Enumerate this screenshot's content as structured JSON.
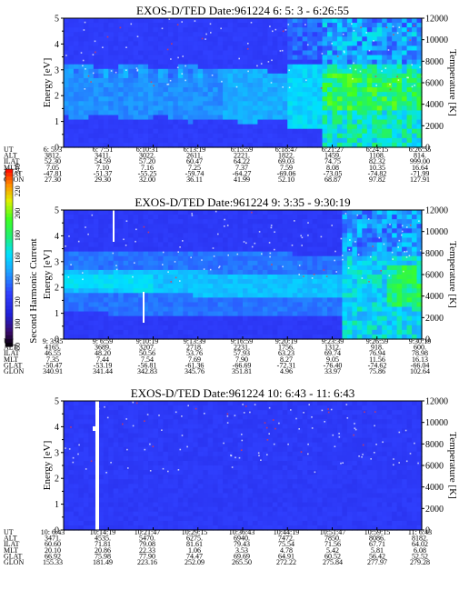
{
  "chart_data": [
    {
      "type": "heatmap",
      "title": "EXOS-D/TED   Date:961224  6: 5: 3 - 6:26:55",
      "ylabel": "Energy [eV]",
      "y2label": "Temperature [K]",
      "ylim": [
        0,
        5
      ],
      "y2lim": [
        0,
        12000
      ],
      "yticks": [
        "0",
        "1",
        "2",
        "3",
        "4",
        "5"
      ],
      "y2ticks": [
        "0",
        "2000",
        "4000",
        "6000",
        "8000",
        "10000",
        "12000"
      ],
      "time_labels": [
        "6: 5: 3",
        "6: 7:51",
        "6:10:31",
        "6:13:19",
        "6:15:59",
        "6:18:47",
        "6:21:27",
        "6:24:15",
        "6:26:55"
      ],
      "table": [
        {
          "label": "UT",
          "values": [
            "6: 5: 3",
            "6: 7:51",
            "6:10:31",
            "6:13:19",
            "6:15:59",
            "6:18:47",
            "6:21:27",
            "6:24:15",
            "6:26:55"
          ]
        },
        {
          "label": "ALT",
          "values": [
            "3812.",
            "3411.",
            "3022.",
            "2611.",
            "2221.",
            "1822.",
            "1459.",
            "1108.",
            "814."
          ]
        },
        {
          "label": "ILAT",
          "values": [
            "52.30",
            "54.59",
            "57.20",
            "60.47",
            "64.22",
            "69.03",
            "74.75",
            "82.32",
            "999.00"
          ]
        },
        {
          "label": "MLT",
          "values": [
            "7.05",
            "7.10",
            "7.16",
            "7.25",
            "7.37",
            "7.59",
            "8.08",
            "10.35",
            "16.64"
          ]
        },
        {
          "label": "GLAT",
          "values": [
            "-47.81",
            "-51.37",
            "-55.25",
            "-59.74",
            "-64.27",
            "-69.06",
            "-73.05",
            "-74.82",
            "-71.99"
          ]
        },
        {
          "label": "GLON",
          "values": [
            "27.30",
            "29.30",
            "32.00",
            "36.11",
            "41.99",
            "52.10",
            "68.87",
            "97.82",
            "127.91"
          ]
        }
      ]
    },
    {
      "type": "heatmap",
      "title": "EXOS-D/TED   Date:961224  9: 3:35 - 9:30:19",
      "ylabel": "Energy [eV]",
      "y2label": "Temperature [K]",
      "ylim": [
        0,
        5
      ],
      "y2lim": [
        0,
        12000
      ],
      "yticks": [
        "0",
        "1",
        "2",
        "3",
        "4",
        "5"
      ],
      "y2ticks": [
        "0",
        "2000",
        "4000",
        "6000",
        "8000",
        "10000",
        "12000"
      ],
      "time_labels": [
        "9: 3:35",
        "9: 6:59",
        "9:10:19",
        "9:13:39",
        "9:16:59",
        "9:20:19",
        "9:23:39",
        "9:26:59",
        "9:30:19"
      ],
      "table": [
        {
          "label": "UT",
          "values": [
            "9: 3:35",
            "9: 6:59",
            "9:10:19",
            "9:13:39",
            "9:16:59",
            "9:20:19",
            "9:23:39",
            "9:26:59",
            "9:30:19"
          ]
        },
        {
          "label": "ALT",
          "values": [
            "4165.",
            "3689.",
            "3207.",
            "2718.",
            "2231.",
            "1756.",
            "1312.",
            "918.",
            "600."
          ]
        },
        {
          "label": "ILAT",
          "values": [
            "46.55",
            "48.20",
            "50.56",
            "53.76",
            "57.93",
            "63.23",
            "69.74",
            "76.94",
            "78.98"
          ]
        },
        {
          "label": "MLT",
          "values": [
            "7.35",
            "7.44",
            "7.54",
            "7.69",
            "7.90",
            "8.27",
            "9.05",
            "11.56",
            "16.13"
          ]
        },
        {
          "label": "GLAT",
          "values": [
            "-50.47",
            "-53.19",
            "-56.81",
            "-61.36",
            "-66.69",
            "-72.31",
            "-76.40",
            "-74.62",
            "-66.04"
          ]
        },
        {
          "label": "GLON",
          "values": [
            "340.91",
            "341.44",
            "342.83",
            "345.76",
            "351.81",
            "4.96",
            "33.97",
            "75.86",
            "102.64"
          ]
        }
      ]
    },
    {
      "type": "heatmap",
      "title": "EXOS-D/TED   Date:961224  10: 6:43 - 11: 6:43",
      "ylabel": "Energy [eV]",
      "y2label": "Temperature [K]",
      "ylim": [
        0,
        5
      ],
      "y2lim": [
        0,
        12000
      ],
      "yticks": [
        "0",
        "1",
        "2",
        "3",
        "4",
        "5"
      ],
      "y2ticks": [
        "0",
        "2000",
        "4000",
        "6000",
        "8000",
        "10000",
        "12000"
      ],
      "time_labels": [
        "10: 6:43",
        "10:14:19",
        "10:21:47",
        "10:29:15",
        "10:36:43",
        "10:44:19",
        "10:51:47",
        "10:59:15",
        "11: 6:43"
      ],
      "table": [
        {
          "label": "UT",
          "values": [
            "10: 6:43",
            "10:14:19",
            "10:21:47",
            "10:29:15",
            "10:36:43",
            "10:44:19",
            "10:51:47",
            "10:59:15",
            "11: 6:43"
          ]
        },
        {
          "label": "ALT",
          "values": [
            "3471.",
            "4535.",
            "5470.",
            "6275.",
            "6940.",
            "7472.",
            "7850.",
            "8086.",
            "8182."
          ]
        },
        {
          "label": "ILAT",
          "values": [
            "60.60",
            "71.81",
            "79.08",
            "81.61",
            "79.43",
            "75.54",
            "71.56",
            "67.71",
            "64.02"
          ]
        },
        {
          "label": "MLT",
          "values": [
            "20.10",
            "20.86",
            "22.33",
            "1.06",
            "3.53",
            "4.78",
            "5.42",
            "5.81",
            "6.08"
          ]
        },
        {
          "label": "GLAT",
          "values": [
            "66.92",
            "75.98",
            "77.90",
            "74.47",
            "69.69",
            "64.91",
            "60.52",
            "56.42",
            "52.52"
          ]
        },
        {
          "label": "GLON",
          "values": [
            "155.33",
            "181.49",
            "223.16",
            "252.09",
            "265.50",
            "272.22",
            "275.84",
            "277.97",
            "279.28"
          ]
        }
      ]
    }
  ],
  "colorbar": {
    "label": "Second Harmonic Current",
    "ticks": [
      "80",
      "100",
      "120",
      "140",
      "160",
      "180",
      "200",
      "220",
      "240"
    ],
    "range": [
      80,
      240
    ]
  }
}
